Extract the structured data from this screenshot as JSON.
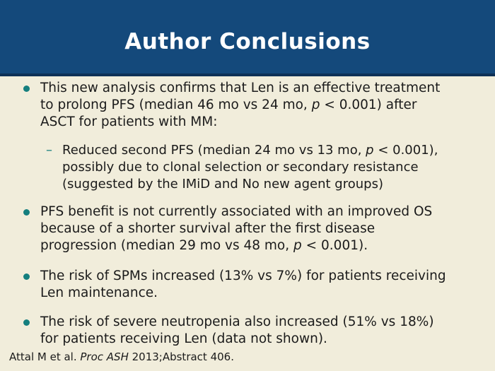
{
  "slide": {
    "title": "Author Conclusions",
    "colors": {
      "header_bg": "#14497b",
      "header_rule": "#0e3156",
      "body_bg": "#f1eddb",
      "bullet_accent": "#157f7e",
      "title_text": "#ffffff",
      "body_text": "#1b1b1b"
    },
    "bullets": [
      {
        "level": 1,
        "lines": [
          [
            {
              "t": "This new analysis confirms that Len is an effective treatment"
            }
          ],
          [
            {
              "t": "to prolong PFS (median 46 mo vs 24 mo, "
            },
            {
              "t": "p",
              "i": true
            },
            {
              "t": " < 0.001) after"
            }
          ],
          [
            {
              "t": "ASCT for patients with MM:"
            }
          ]
        ]
      },
      {
        "level": 2,
        "lines": [
          [
            {
              "t": "Reduced second PFS (median 24 mo vs 13 mo, "
            },
            {
              "t": "p",
              "i": true
            },
            {
              "t": " < 0.001),"
            }
          ],
          [
            {
              "t": "possibly due to clonal selection or secondary resistance"
            }
          ],
          [
            {
              "t": "(suggested by the IMiD and No new agent groups)"
            }
          ]
        ]
      },
      {
        "level": 1,
        "lines": [
          [
            {
              "t": "PFS benefit is not currently associated with an improved OS"
            }
          ],
          [
            {
              "t": "because of a shorter survival after the first disease"
            }
          ],
          [
            {
              "t": "progression (median 29 mo vs 48 mo, "
            },
            {
              "t": "p",
              "i": true
            },
            {
              "t": " < 0.001)."
            }
          ]
        ]
      },
      {
        "level": 1,
        "lines": [
          [
            {
              "t": "The risk of SPMs increased (13% vs 7%) for patients receiving"
            }
          ],
          [
            {
              "t": "Len maintenance."
            }
          ]
        ]
      },
      {
        "level": 1,
        "lines": [
          [
            {
              "t": "The risk of severe neutropenia also increased (51% vs 18%)"
            }
          ],
          [
            {
              "t": "for patients receiving Len (data not shown)."
            }
          ]
        ]
      }
    ],
    "footer": [
      {
        "t": "Attal M et al. "
      },
      {
        "t": "Proc ASH",
        "i": true
      },
      {
        "t": " 2013;Abstract 406."
      }
    ]
  }
}
